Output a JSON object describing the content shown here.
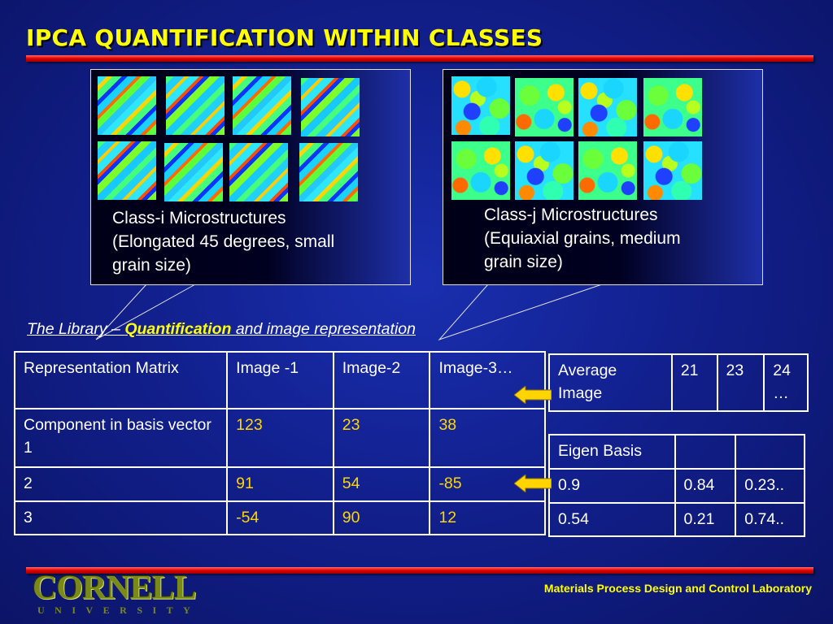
{
  "slide": {
    "title": "IPCA QUANTIFICATION WITHIN CLASSES"
  },
  "callouts": [
    {
      "lines": [
        "Class-i Microstructures",
        "(Elongated 45 degrees, small",
        "grain size)"
      ],
      "tile_style": "elongated"
    },
    {
      "lines": [
        "Class-j Microstructures",
        "(Equiaxial grains, medium",
        "grain size)"
      ],
      "tile_style": "equiaxial"
    }
  ],
  "library": {
    "prefix": "The Library – ",
    "highlight": "Quantification",
    "suffix": " and image representation"
  },
  "main_table": {
    "header": [
      "Representation Matrix",
      "Image -1",
      "Image-2",
      "Image-3…"
    ],
    "rows": [
      [
        "Component in basis vector 1",
        "123",
        "23",
        "38"
      ],
      [
        "2",
        "91",
        "54",
        "-85"
      ],
      [
        "3",
        "-54",
        "90",
        "12"
      ]
    ]
  },
  "average_table": {
    "cells": [
      "Average Image",
      "21",
      "23",
      "24 …"
    ]
  },
  "eigen_table": {
    "header": [
      "Eigen Basis",
      "",
      ""
    ],
    "rows": [
      [
        "0.9",
        "0.84",
        "0.23.."
      ],
      [
        "0.54",
        "0.21",
        "0.74.."
      ]
    ]
  },
  "footer": {
    "logo": "CORNELL",
    "logo_sub": "UNIVERSITY",
    "lab": "Materials Process Design and Control Laboratory"
  },
  "colors": {
    "title": "#ffff00",
    "accent_bar": "#e00000",
    "highlight_values": "#ffd700",
    "background": "#12208e",
    "arrow": "#ffd400"
  }
}
